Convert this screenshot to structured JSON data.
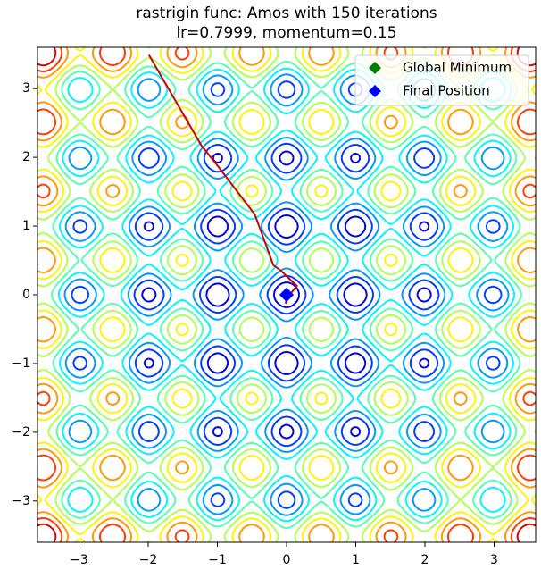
{
  "chart_data": {
    "type": "contour",
    "function": "rastrigin",
    "colormap": "jet",
    "title": "rastrigin func: Amos with 150 iterations",
    "subtitle": "lr=0.7999, momentum=0.15",
    "xlim": [
      -3.6,
      3.6
    ],
    "ylim": [
      -3.6,
      3.6
    ],
    "xticks": [
      {
        "value": -3,
        "label": "−3"
      },
      {
        "value": -2,
        "label": "−2"
      },
      {
        "value": -1,
        "label": "−1"
      },
      0,
      1,
      2,
      3
    ],
    "yticks": [
      {
        "value": -3,
        "label": "−3"
      },
      {
        "value": -2,
        "label": "−2"
      },
      {
        "value": -1,
        "label": "−1"
      },
      0,
      1,
      2,
      3
    ],
    "path": {
      "color": "#d40000",
      "x": [
        -1.99,
        -1.23,
        -1.0,
        -0.46,
        -0.19,
        -0.08,
        0.15,
        0.01,
        -0.01,
        0.0
      ],
      "y": [
        3.49,
        2.17,
        1.88,
        1.17,
        0.43,
        0.35,
        0.13,
        -0.04,
        -0.13,
        0.0
      ]
    },
    "markers": [
      {
        "name": "Global Minimum",
        "color": "#008000",
        "x": 0,
        "y": 0
      },
      {
        "name": "Final Position",
        "color": "#0000ff",
        "x": 0,
        "y": 0
      }
    ],
    "legend": "upper right"
  }
}
